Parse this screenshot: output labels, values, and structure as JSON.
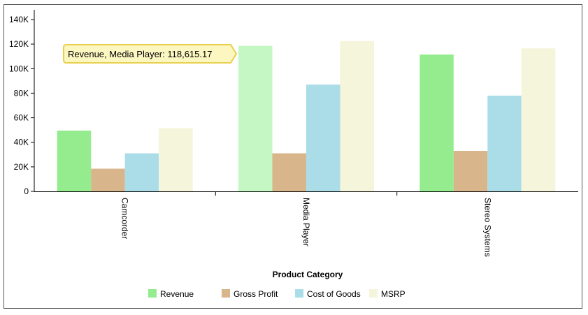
{
  "chart_data": {
    "type": "bar",
    "categories": [
      "Camcorder",
      "Media Player",
      "Stereo Systems"
    ],
    "series": [
      {
        "name": "Revenue",
        "values": [
          49500,
          118615.17,
          111500
        ],
        "color": "#94ec8e"
      },
      {
        "name": "Gross Profit",
        "values": [
          18500,
          31000,
          33000
        ],
        "color": "#d8b58b"
      },
      {
        "name": "Cost of Goods",
        "values": [
          31000,
          87000,
          78000
        ],
        "color": "#abdde8"
      },
      {
        "name": "MSRP",
        "values": [
          51500,
          122500,
          116500
        ],
        "color": "#f5f5db"
      }
    ],
    "highlight": {
      "series": 0,
      "category": 1,
      "color": "#c4f7c3"
    },
    "xlabel": "Product Category",
    "ylabel": "",
    "ylim": [
      0,
      140000
    ],
    "yticks": [
      0,
      20000,
      40000,
      60000,
      80000,
      100000,
      120000,
      140000
    ],
    "ytick_labels": [
      "0",
      "20K",
      "40K",
      "60K",
      "80K",
      "100K",
      "120K",
      "140K"
    ],
    "grid": false,
    "legend_position": "bottom",
    "tooltip": {
      "text": "Revenue, Media Player: 118,615.17",
      "bg": "#fcf6c0",
      "border": "#e8d04e"
    }
  }
}
